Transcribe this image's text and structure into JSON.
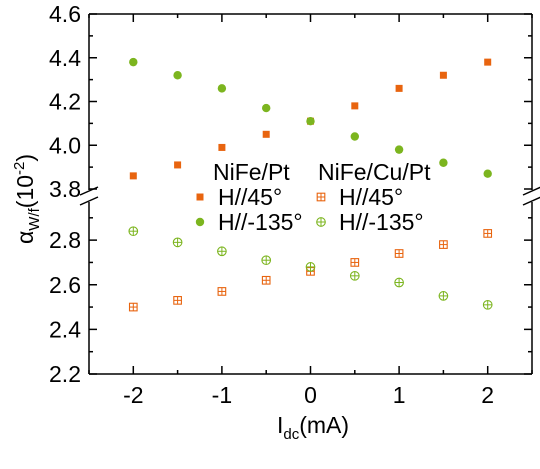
{
  "chart_data": {
    "type": "scatter",
    "x_axis": {
      "label_main": "I",
      "label_sub": "dc",
      "label_unit": "(mA)",
      "ticks": [
        -2,
        -1,
        0,
        1,
        2
      ],
      "range": [
        -2.5,
        2.5
      ]
    },
    "y_axis": {
      "label_main": "α",
      "label_sub": "W/f",
      "label_unit": "(10",
      "label_sup": "-2",
      "label_close": ")",
      "broken": true,
      "upper_panel": {
        "range": [
          3.8,
          4.6
        ],
        "ticks": [
          3.8,
          4.0,
          4.2,
          4.4,
          4.6
        ],
        "tick_labels": [
          "3.8",
          "4.0",
          "4.2",
          "4.4",
          "4.6"
        ]
      },
      "lower_panel": {
        "range": [
          2.2,
          3.0
        ],
        "ticks": [
          2.2,
          2.4,
          2.6,
          2.8
        ],
        "tick_labels": [
          "2.2",
          "2.4",
          "2.6",
          "2.8"
        ]
      }
    },
    "legend": {
      "groups": [
        {
          "title": "NiFe/Pt",
          "entries": [
            {
              "series_index": 0,
              "label": "H//45°"
            },
            {
              "series_index": 1,
              "label": "H//-135°"
            }
          ]
        },
        {
          "title": "NiFe/Cu/Pt",
          "entries": [
            {
              "series_index": 2,
              "label": "H//45°"
            },
            {
              "series_index": 3,
              "label": "H//-135°"
            }
          ]
        }
      ]
    },
    "series": [
      {
        "sample": "NiFe/Pt",
        "field": "H//45°",
        "marker": "filled-square",
        "color": "#e8640f",
        "x": [
          -2,
          -1.5,
          -1,
          -0.5,
          0,
          0.5,
          1,
          1.5,
          2
        ],
        "y": [
          3.86,
          3.91,
          3.99,
          4.05,
          4.11,
          4.18,
          4.26,
          4.32,
          4.38
        ]
      },
      {
        "sample": "NiFe/Pt",
        "field": "H//-135°",
        "marker": "filled-circle",
        "color": "#7cb51f",
        "x": [
          -2,
          -1.5,
          -1,
          -0.5,
          0,
          0.5,
          1,
          1.5,
          2
        ],
        "y": [
          4.38,
          4.32,
          4.26,
          4.17,
          4.11,
          4.04,
          3.98,
          3.92,
          3.87
        ]
      },
      {
        "sample": "NiFe/Cu/Pt",
        "field": "H//45°",
        "marker": "open-square-cross",
        "color": "#e8640f",
        "x": [
          -2,
          -1.5,
          -1,
          -0.5,
          0,
          0.5,
          1,
          1.5,
          2
        ],
        "y": [
          2.5,
          2.53,
          2.57,
          2.62,
          2.66,
          2.7,
          2.74,
          2.78,
          2.83
        ]
      },
      {
        "sample": "NiFe/Cu/Pt",
        "field": "H//-135°",
        "marker": "open-circle-cross",
        "color": "#7cb51f",
        "x": [
          -2,
          -1.5,
          -1,
          -0.5,
          0,
          0.5,
          1,
          1.5,
          2
        ],
        "y": [
          2.84,
          2.79,
          2.75,
          2.71,
          2.68,
          2.64,
          2.61,
          2.55,
          2.51
        ]
      }
    ]
  }
}
